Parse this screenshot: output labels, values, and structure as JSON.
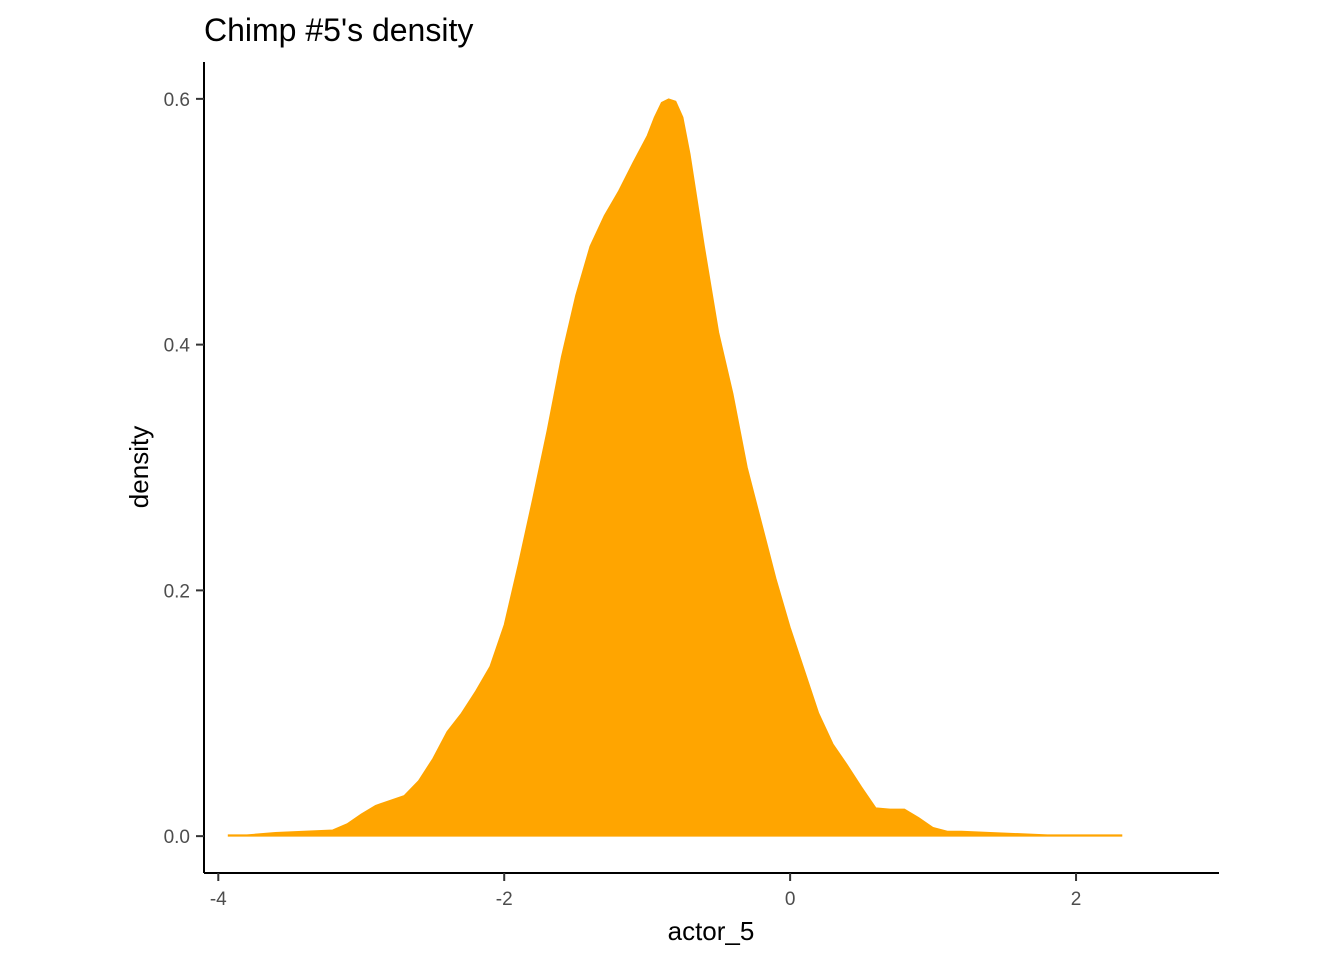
{
  "chart_data": {
    "type": "area",
    "title": "Chimp #5's density",
    "xlabel": "actor_5",
    "ylabel": "density",
    "xlim": [
      -4.1,
      3.0
    ],
    "ylim": [
      -0.03,
      0.63
    ],
    "x_ticks": [
      -4,
      -2,
      0,
      2
    ],
    "x_tick_labels": [
      "-4",
      "-2",
      "0",
      "2"
    ],
    "y_ticks": [
      0.0,
      0.2,
      0.4,
      0.6
    ],
    "y_tick_labels": [
      "0.0",
      "0.2",
      "0.4",
      "0.6"
    ],
    "grid": false,
    "legend": "none",
    "fill_color": "#FFA500",
    "series": [
      {
        "x": [
          -3.93,
          -3.8,
          -3.6,
          -3.4,
          -3.2,
          -3.1,
          -3.0,
          -2.9,
          -2.7,
          -2.6,
          -2.5,
          -2.4,
          -2.3,
          -2.2,
          -2.1,
          -2.0,
          -1.9,
          -1.8,
          -1.7,
          -1.6,
          -1.5,
          -1.4,
          -1.3,
          -1.2,
          -1.1,
          -1.0,
          -0.95,
          -0.9,
          -0.85,
          -0.8,
          -0.75,
          -0.7,
          -0.6,
          -0.5,
          -0.4,
          -0.3,
          -0.2,
          -0.1,
          0.0,
          0.1,
          0.2,
          0.3,
          0.4,
          0.5,
          0.6,
          0.7,
          0.8,
          0.9,
          1.0,
          1.1,
          1.2,
          1.4,
          1.6,
          1.8,
          2.0,
          2.2,
          2.32
        ],
        "y": [
          0.001,
          0.001,
          0.003,
          0.004,
          0.005,
          0.01,
          0.018,
          0.025,
          0.033,
          0.045,
          0.063,
          0.085,
          0.1,
          0.118,
          0.138,
          0.172,
          0.222,
          0.275,
          0.33,
          0.39,
          0.44,
          0.48,
          0.505,
          0.525,
          0.548,
          0.57,
          0.585,
          0.597,
          0.6,
          0.598,
          0.585,
          0.555,
          0.48,
          0.41,
          0.36,
          0.3,
          0.255,
          0.21,
          0.17,
          0.135,
          0.1,
          0.075,
          0.058,
          0.04,
          0.023,
          0.022,
          0.022,
          0.015,
          0.007,
          0.004,
          0.004,
          0.003,
          0.002,
          0.001,
          0.001,
          0.001,
          0.001
        ]
      }
    ]
  }
}
